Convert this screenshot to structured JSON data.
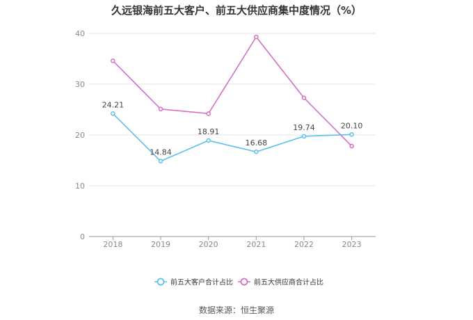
{
  "title": "久远银海前五大客户、前五大供应商集中度情况（%）",
  "source": "数据来源：恒生聚源",
  "chart_data": {
    "type": "line",
    "title": "久远银海前五大客户、前五大供应商集中度情况（%）",
    "x": [
      "2018",
      "2019",
      "2020",
      "2021",
      "2022",
      "2023"
    ],
    "ylim": [
      0,
      40
    ],
    "yticks": [
      0,
      10,
      20,
      30,
      40
    ],
    "grid": true,
    "legend": "bottom",
    "series": [
      {
        "name": "前五大客户合计占比",
        "color": "#5bc0eb",
        "values": [
          24.21,
          14.84,
          18.91,
          16.68,
          19.74,
          20.1
        ],
        "labels": [
          "24.21",
          "14.84",
          "18.91",
          "16.68",
          "19.74",
          "20.10"
        ]
      },
      {
        "name": "前五大供应商合计占比",
        "color": "#d46fc3",
        "values": [
          34.6,
          25.1,
          24.2,
          39.3,
          27.3,
          17.8
        ],
        "labels": []
      }
    ]
  }
}
